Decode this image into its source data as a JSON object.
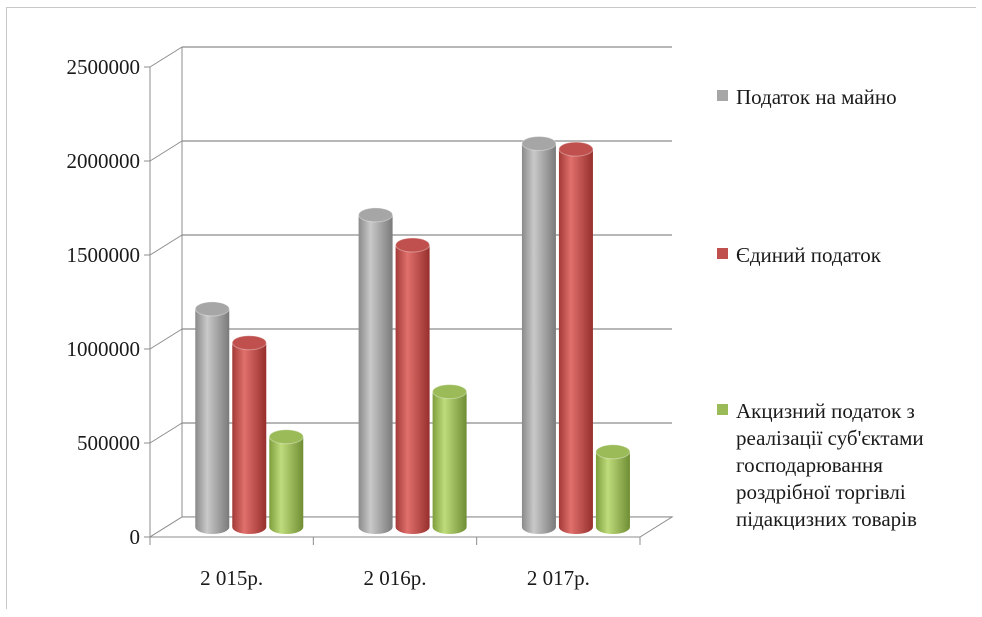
{
  "chart_data": {
    "type": "bar",
    "three_d": true,
    "categories": [
      "2 015р.",
      "2 016р.",
      "2 017р."
    ],
    "series": [
      {
        "name": "Податок на майно",
        "color": "#a6a6a6",
        "values": [
          1160000,
          1660000,
          2040000
        ]
      },
      {
        "name": "Єдиний податок",
        "color": "#c0504d",
        "values": [
          980000,
          1500000,
          2010000
        ]
      },
      {
        "name": "Акцизний податок з реалізації суб'єктами господарювання роздрібної торгівлі підакцизних товарів",
        "color": "#9bbb59",
        "values": [
          480000,
          720000,
          400000
        ]
      }
    ],
    "y_ticks": [
      "0",
      "500000",
      "1000000",
      "1500000",
      "2000000",
      "2500000"
    ],
    "ylim": [
      0,
      2500000
    ],
    "grid": true,
    "legend": "right"
  },
  "legend_lines": [
    [
      "Податок на майно"
    ],
    [
      "Єдиний податок"
    ],
    [
      "Акцизний податок з",
      "реалізації суб'єктами",
      "господарювання",
      "роздрібної торгівлі",
      "підакцизних товарів"
    ]
  ]
}
